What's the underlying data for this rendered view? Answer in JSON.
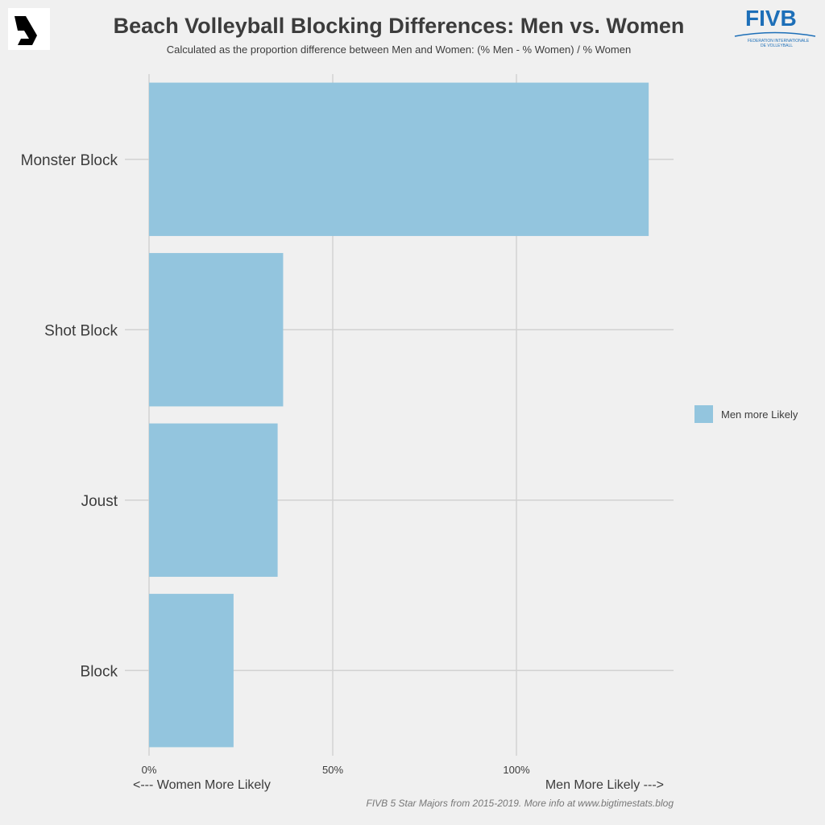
{
  "header": {
    "title": "Beach Volleyball Blocking Differences: Men vs. Women",
    "subtitle": "Calculated as the proportion difference between Men and Women: (% Men - % Women) / % Women"
  },
  "logos": {
    "left_logo_icon": "bigtimestats-s-logo",
    "right_logo_text": "FIVB",
    "right_logo_sub1": "FEDERATION INTERNATIONALE",
    "right_logo_sub2": "DE VOLLEYBALL",
    "right_logo_color": "#1d6fb8"
  },
  "chart_data": {
    "type": "bar",
    "orientation": "horizontal",
    "categories": [
      "Monster Block",
      "Shot Block",
      "Joust",
      "Block"
    ],
    "series": [
      {
        "name": "Men more Likely",
        "values": [
          136,
          36.5,
          35,
          23
        ],
        "color": "#93c5de"
      }
    ],
    "x_ticks": [
      0,
      50,
      100
    ],
    "x_tick_labels": [
      "0%",
      "50%",
      "100%"
    ],
    "xlim": [
      0,
      142
    ],
    "grid": true,
    "legend": {
      "position": "right",
      "entries": [
        "Men more Likely"
      ]
    },
    "left_direction_label": "<--- Women More Likely",
    "right_direction_label": "Men More Likely --->"
  },
  "footer": {
    "caption": "FIVB 5 Star Majors from 2015-2019. More info at www.bigtimestats.blog"
  }
}
